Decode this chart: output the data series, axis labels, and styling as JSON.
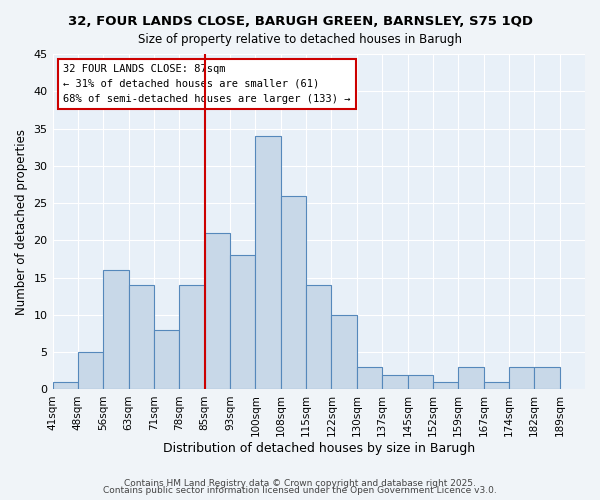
{
  "title": "32, FOUR LANDS CLOSE, BARUGH GREEN, BARNSLEY, S75 1QD",
  "subtitle": "Size of property relative to detached houses in Barugh",
  "xlabel": "Distribution of detached houses by size in Barugh",
  "ylabel": "Number of detached properties",
  "bin_labels": [
    "41sqm",
    "48sqm",
    "56sqm",
    "63sqm",
    "71sqm",
    "78sqm",
    "85sqm",
    "93sqm",
    "100sqm",
    "108sqm",
    "115sqm",
    "122sqm",
    "130sqm",
    "137sqm",
    "145sqm",
    "152sqm",
    "159sqm",
    "167sqm",
    "174sqm",
    "182sqm",
    "189sqm"
  ],
  "bar_heights": [
    1,
    5,
    16,
    14,
    8,
    14,
    21,
    18,
    34,
    26,
    14,
    10,
    3,
    2,
    2,
    1,
    3,
    1,
    3,
    3
  ],
  "bar_color": "#c8d8e8",
  "bar_edge_color": "#5588bb",
  "vline_x_index": 6,
  "vline_color": "#cc0000",
  "annotation_title": "32 FOUR LANDS CLOSE: 87sqm",
  "annotation_line1": "← 31% of detached houses are smaller (61)",
  "annotation_line2": "68% of semi-detached houses are larger (133) →",
  "annotation_box_edge": "#cc0000",
  "ylim": [
    0,
    45
  ],
  "yticks": [
    0,
    5,
    10,
    15,
    20,
    25,
    30,
    35,
    40,
    45
  ],
  "footer1": "Contains HM Land Registry data © Crown copyright and database right 2025.",
  "footer2": "Contains public sector information licensed under the Open Government Licence v3.0.",
  "bg_color": "#f0f4f8",
  "plot_bg_color": "#e8f0f8"
}
